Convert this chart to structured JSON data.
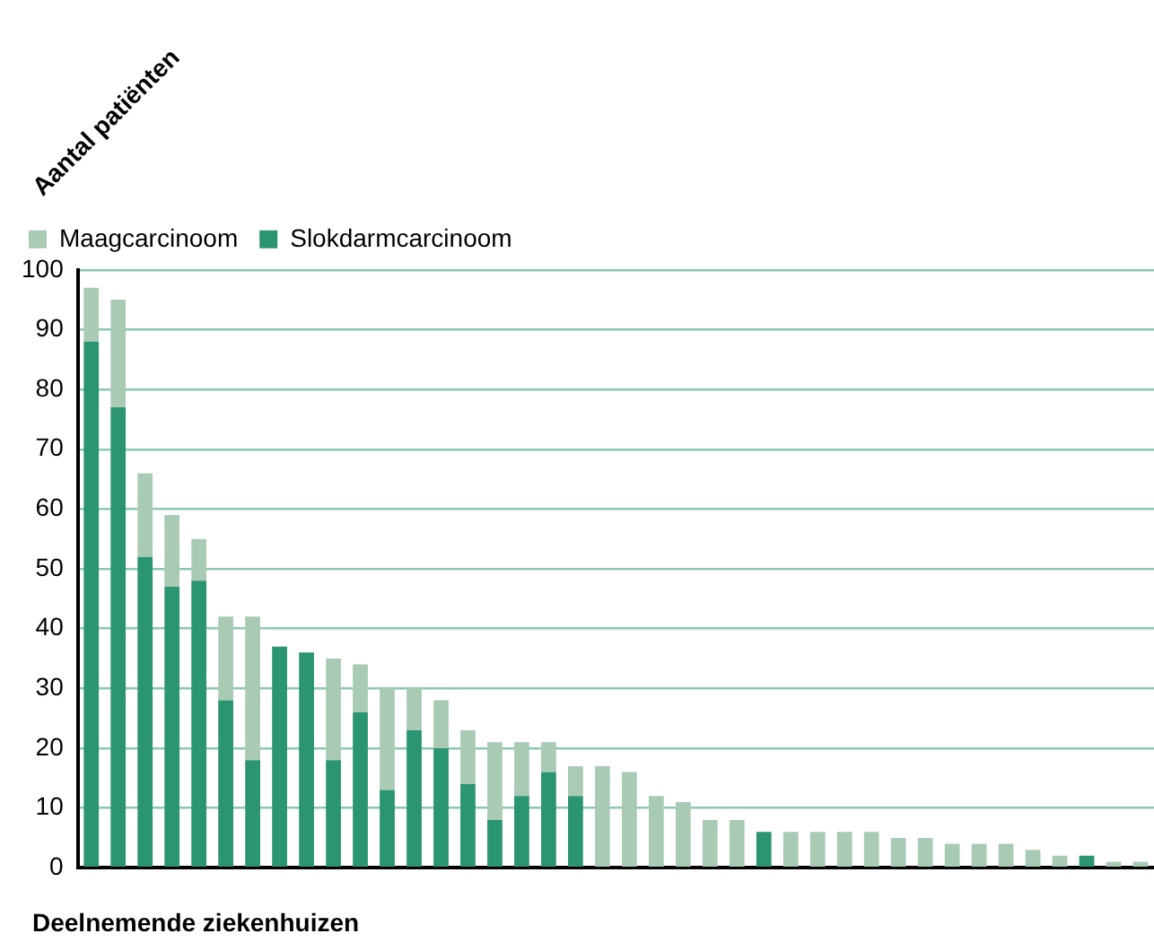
{
  "chart_data": {
    "type": "bar",
    "stacked": true,
    "xlabel": "Deelnemende ziekenhuizen",
    "ylabel": "Aantal patiënten",
    "categories": [
      null,
      null,
      null,
      null,
      null,
      null,
      null,
      null,
      null,
      null,
      null,
      null,
      null,
      null,
      null,
      null,
      null,
      null,
      null,
      null,
      null,
      null,
      null,
      null,
      null,
      null,
      null,
      null,
      null,
      null,
      null,
      null,
      null,
      null,
      null,
      null,
      null,
      null,
      null,
      null
    ],
    "series": [
      {
        "name": "Slokdarmcarcinoom",
        "color": "#2a9570",
        "values": [
          88,
          77,
          52,
          47,
          48,
          28,
          18,
          37,
          36,
          18,
          26,
          13,
          23,
          20,
          14,
          8,
          12,
          16,
          12,
          0,
          0,
          0,
          0,
          0,
          0,
          6,
          0,
          0,
          0,
          0,
          0,
          0,
          0,
          0,
          0,
          0,
          0,
          2,
          0,
          0
        ]
      },
      {
        "name": "Maagcarcinoom",
        "color": "#a9cbb5",
        "values": [
          9,
          18,
          14,
          12,
          7,
          14,
          24,
          0,
          0,
          17,
          8,
          17,
          7,
          8,
          9,
          13,
          9,
          5,
          5,
          17,
          16,
          12,
          11,
          8,
          8,
          0,
          6,
          6,
          6,
          6,
          5,
          5,
          4,
          4,
          4,
          3,
          2,
          0,
          1,
          1
        ]
      }
    ],
    "ylim": [
      0,
      100
    ],
    "yticks": [
      0,
      10,
      20,
      30,
      40,
      50,
      60,
      70,
      80,
      90,
      100
    ],
    "grid": "y",
    "legend": "top left"
  }
}
